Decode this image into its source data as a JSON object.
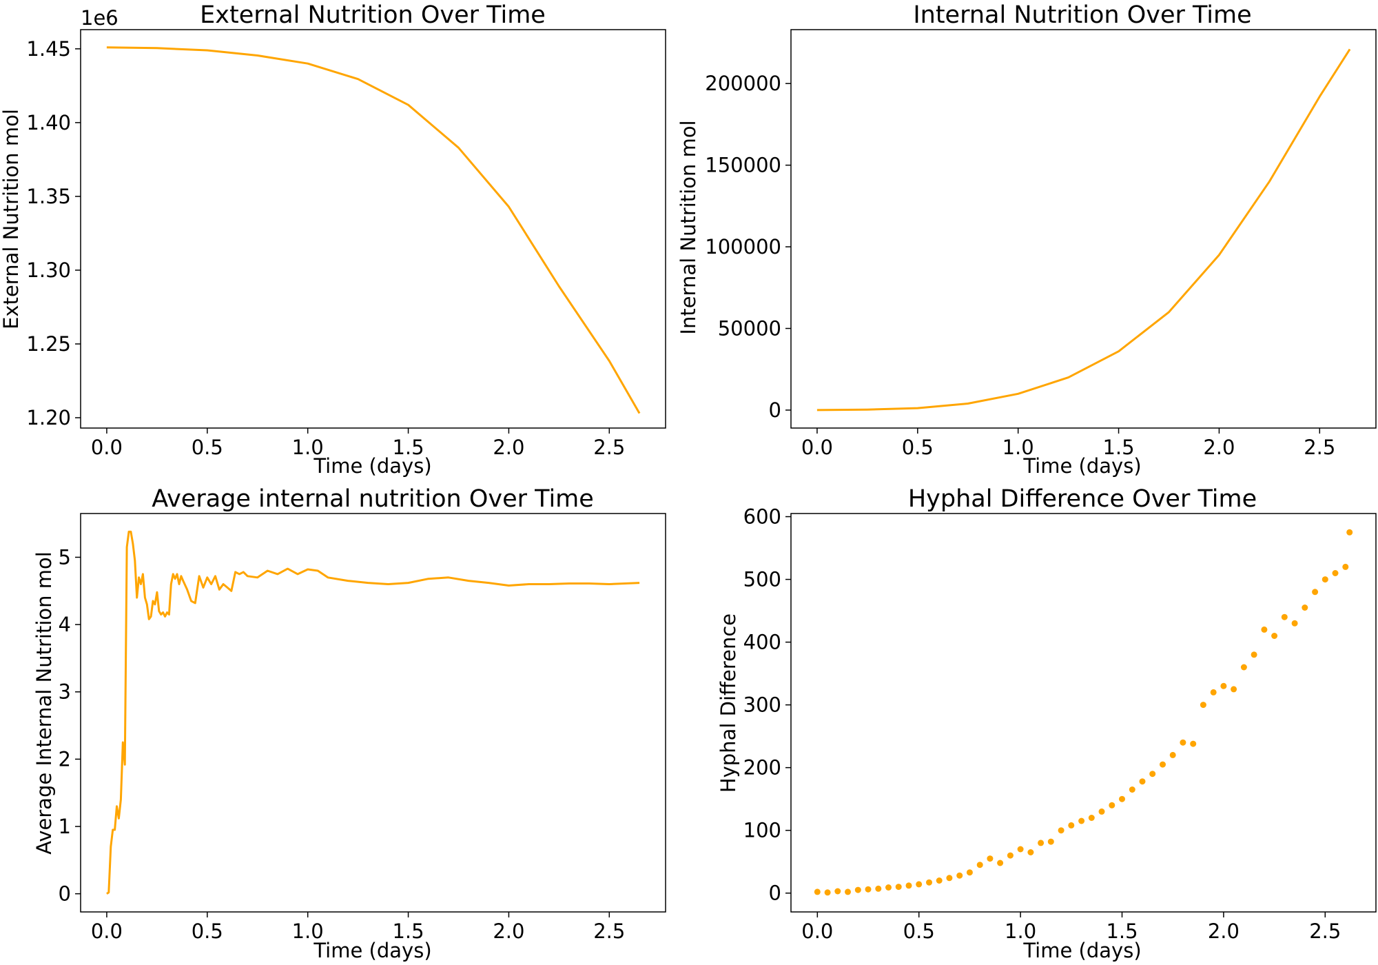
{
  "colors": {
    "series": "#FFA500",
    "axes": "#000000",
    "background": "#FFFFFF"
  },
  "chart_data": [
    {
      "type": "line",
      "title": "External Nutrition Over Time",
      "xlabel": "Time (days)",
      "ylabel": "External Nutrition mol",
      "offset_label": "1e6",
      "xlim": [
        -0.13,
        2.78
      ],
      "ylim": [
        1.193,
        1.463
      ],
      "xticks": [
        0.0,
        0.5,
        1.0,
        1.5,
        2.0,
        2.5
      ],
      "xtick_labels": [
        "0.0",
        "0.5",
        "1.0",
        "1.5",
        "2.0",
        "2.5"
      ],
      "yticks": [
        1.2,
        1.25,
        1.3,
        1.35,
        1.4,
        1.45
      ],
      "ytick_labels": [
        "1.20",
        "1.25",
        "1.30",
        "1.35",
        "1.40",
        "1.45"
      ],
      "grid": false,
      "series": [
        {
          "x": [
            0.0,
            0.25,
            0.5,
            0.75,
            1.0,
            1.25,
            1.5,
            1.75,
            2.0,
            2.25,
            2.5,
            2.65
          ],
          "values": [
            1.451,
            1.4505,
            1.449,
            1.4455,
            1.44,
            1.4295,
            1.412,
            1.383,
            1.343,
            1.289,
            1.2385,
            1.203
          ]
        }
      ]
    },
    {
      "type": "line",
      "title": "Internal Nutrition Over Time",
      "xlabel": "Time (days)",
      "ylabel": "Internal Nutrition mol",
      "xlim": [
        -0.13,
        2.78
      ],
      "ylim": [
        -11000,
        233000
      ],
      "xticks": [
        0.0,
        0.5,
        1.0,
        1.5,
        2.0,
        2.5
      ],
      "xtick_labels": [
        "0.0",
        "0.5",
        "1.0",
        "1.5",
        "2.0",
        "2.5"
      ],
      "yticks": [
        0,
        50000,
        100000,
        150000,
        200000
      ],
      "ytick_labels": [
        "0",
        "50000",
        "100000",
        "150000",
        "200000"
      ],
      "grid": false,
      "series": [
        {
          "x": [
            0.0,
            0.25,
            0.5,
            0.75,
            1.0,
            1.25,
            1.5,
            1.75,
            2.0,
            2.25,
            2.5,
            2.65
          ],
          "values": [
            0,
            300,
            1200,
            4000,
            10000,
            20000,
            36000,
            60000,
            95000,
            140000,
            192000,
            221000
          ]
        }
      ]
    },
    {
      "type": "line",
      "title": "Average internal nutrition Over Time",
      "xlabel": "Time (days)",
      "ylabel": "Average Internal Nutrition mol",
      "xlim": [
        -0.13,
        2.78
      ],
      "ylim": [
        -0.27,
        5.65
      ],
      "xticks": [
        0.0,
        0.5,
        1.0,
        1.5,
        2.0,
        2.5
      ],
      "xtick_labels": [
        "0.0",
        "0.5",
        "1.0",
        "1.5",
        "2.0",
        "2.5"
      ],
      "yticks": [
        0,
        1,
        2,
        3,
        4,
        5
      ],
      "ytick_labels": [
        "0",
        "1",
        "2",
        "3",
        "4",
        "5"
      ],
      "grid": false,
      "series": [
        {
          "x": [
            0.0,
            0.01,
            0.02,
            0.03,
            0.04,
            0.05,
            0.06,
            0.07,
            0.08,
            0.09,
            0.1,
            0.11,
            0.12,
            0.13,
            0.14,
            0.15,
            0.16,
            0.17,
            0.18,
            0.19,
            0.2,
            0.21,
            0.22,
            0.23,
            0.24,
            0.25,
            0.26,
            0.27,
            0.28,
            0.29,
            0.3,
            0.31,
            0.32,
            0.33,
            0.34,
            0.35,
            0.36,
            0.37,
            0.38,
            0.4,
            0.42,
            0.44,
            0.46,
            0.48,
            0.5,
            0.52,
            0.54,
            0.56,
            0.58,
            0.6,
            0.62,
            0.64,
            0.66,
            0.68,
            0.7,
            0.75,
            0.8,
            0.85,
            0.9,
            0.95,
            1.0,
            1.05,
            1.1,
            1.2,
            1.3,
            1.4,
            1.5,
            1.6,
            1.7,
            1.8,
            1.9,
            2.0,
            2.1,
            2.2,
            2.3,
            2.4,
            2.5,
            2.65
          ],
          "values": [
            0.0,
            0.02,
            0.7,
            0.95,
            0.95,
            1.3,
            1.12,
            1.4,
            2.25,
            1.92,
            5.15,
            5.38,
            5.38,
            5.2,
            4.95,
            4.4,
            4.7,
            4.6,
            4.75,
            4.4,
            4.3,
            4.08,
            4.12,
            4.35,
            4.3,
            4.48,
            4.2,
            4.15,
            4.18,
            4.12,
            4.18,
            4.15,
            4.6,
            4.75,
            4.68,
            4.75,
            4.6,
            4.72,
            4.65,
            4.52,
            4.35,
            4.32,
            4.72,
            4.55,
            4.7,
            4.6,
            4.72,
            4.52,
            4.6,
            4.55,
            4.5,
            4.78,
            4.75,
            4.78,
            4.72,
            4.7,
            4.8,
            4.75,
            4.83,
            4.75,
            4.82,
            4.8,
            4.7,
            4.65,
            4.62,
            4.6,
            4.62,
            4.68,
            4.7,
            4.65,
            4.62,
            4.58,
            4.6,
            4.6,
            4.61,
            4.61,
            4.6,
            4.62
          ]
        }
      ]
    },
    {
      "type": "scatter",
      "title": "Hyphal Difference Over Time",
      "xlabel": "Time (days)",
      "ylabel": "Hyphal Difference",
      "xlim": [
        -0.13,
        2.75
      ],
      "ylim": [
        -30,
        605
      ],
      "xticks": [
        0.0,
        0.5,
        1.0,
        1.5,
        2.0,
        2.5
      ],
      "xtick_labels": [
        "0.0",
        "0.5",
        "1.0",
        "1.5",
        "2.0",
        "2.5"
      ],
      "yticks": [
        0,
        100,
        200,
        300,
        400,
        500,
        600
      ],
      "ytick_labels": [
        "0",
        "100",
        "200",
        "300",
        "400",
        "500",
        "600"
      ],
      "grid": false,
      "series": [
        {
          "x": [
            0.0,
            0.05,
            0.1,
            0.15,
            0.2,
            0.25,
            0.3,
            0.35,
            0.4,
            0.45,
            0.5,
            0.55,
            0.6,
            0.65,
            0.7,
            0.75,
            0.8,
            0.85,
            0.9,
            0.95,
            1.0,
            1.05,
            1.1,
            1.15,
            1.2,
            1.25,
            1.3,
            1.35,
            1.4,
            1.45,
            1.5,
            1.55,
            1.6,
            1.65,
            1.7,
            1.75,
            1.8,
            1.85,
            1.9,
            1.95,
            2.0,
            2.05,
            2.1,
            2.15,
            2.2,
            2.25,
            2.3,
            2.35,
            2.4,
            2.45,
            2.5,
            2.55,
            2.6,
            2.62
          ],
          "values": [
            2,
            1,
            3,
            2,
            5,
            6,
            7,
            9,
            10,
            12,
            14,
            17,
            20,
            24,
            28,
            33,
            45,
            55,
            48,
            60,
            70,
            65,
            80,
            82,
            100,
            108,
            115,
            120,
            130,
            140,
            150,
            165,
            178,
            190,
            205,
            220,
            240,
            238,
            300,
            320,
            330,
            325,
            360,
            380,
            420,
            410,
            440,
            430,
            455,
            480,
            500,
            510,
            520,
            575
          ]
        }
      ]
    }
  ]
}
